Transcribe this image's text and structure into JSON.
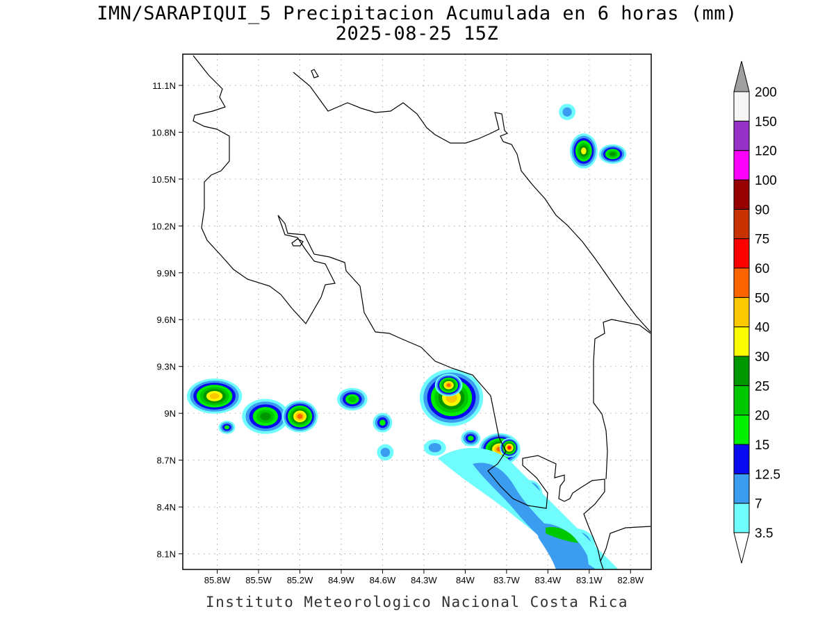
{
  "title": {
    "line1": "IMN/SARAPIQUI_5 Precipitacion Acumulada en 6 horas (mm)",
    "line2": "2025-08-25 15Z"
  },
  "credit": "Instituto Meteorologico Nacional Costa Rica",
  "map": {
    "lon_range": [
      -86.05,
      -82.65
    ],
    "lat_range": [
      8.0,
      11.3
    ],
    "lat_ticks": [
      "11.1N",
      "10.8N",
      "10.5N",
      "10.2N",
      "9.9N",
      "9.6N",
      "9.3N",
      "9N",
      "8.7N",
      "8.4N",
      "8.1N"
    ],
    "lat_values": [
      11.1,
      10.8,
      10.5,
      10.2,
      9.9,
      9.6,
      9.3,
      9.0,
      8.7,
      8.4,
      8.1
    ],
    "lon_ticks": [
      "85.8W",
      "85.5W",
      "85.2W",
      "84.9W",
      "84.6W",
      "84.3W",
      "84W",
      "83.7W",
      "83.4W",
      "83.1W",
      "82.8W"
    ],
    "lon_values": [
      -85.8,
      -85.5,
      -85.2,
      -84.9,
      -84.6,
      -84.3,
      -84.0,
      -83.7,
      -83.4,
      -83.1,
      -82.8
    ],
    "grid": true
  },
  "colorbar": {
    "labels": [
      "3.5",
      "7",
      "12.5",
      "15",
      "20",
      "25",
      "30",
      "40",
      "50",
      "60",
      "75",
      "90",
      "100",
      "120",
      "150",
      "200"
    ],
    "colors": [
      "#6ffcfc",
      "#3c9cf0",
      "#0a0af0",
      "#00f000",
      "#00c800",
      "#009600",
      "#fcfc00",
      "#fcc800",
      "#fc6400",
      "#fc0000",
      "#c83200",
      "#960000",
      "#fc00fc",
      "#9632c8",
      "#f6f6f6",
      "#a0a0a0"
    ],
    "under_color": "#ffffff",
    "over_color": "#a0a0a0"
  },
  "precip_cells": [
    {
      "lon": -85.82,
      "lat": 9.11,
      "rx": 0.17,
      "ry": 0.09,
      "level": 7
    },
    {
      "lon": -85.73,
      "lat": 8.91,
      "rx": 0.03,
      "ry": 0.02,
      "level": 3
    },
    {
      "lon": -85.45,
      "lat": 8.98,
      "rx": 0.14,
      "ry": 0.09,
      "level": 5
    },
    {
      "lon": -85.2,
      "lat": 8.98,
      "rx": 0.1,
      "ry": 0.08,
      "level": 8
    },
    {
      "lon": -84.82,
      "lat": 9.09,
      "rx": 0.08,
      "ry": 0.05,
      "level": 4
    },
    {
      "lon": -84.6,
      "lat": 8.94,
      "rx": 0.04,
      "ry": 0.04,
      "level": 3
    },
    {
      "lon": -84.1,
      "lat": 9.1,
      "rx": 0.2,
      "ry": 0.16,
      "level": 7
    },
    {
      "lon": -84.12,
      "lat": 9.18,
      "rx": 0.07,
      "ry": 0.05,
      "level": 8
    },
    {
      "lon": -83.96,
      "lat": 8.84,
      "rx": 0.04,
      "ry": 0.03,
      "level": 3
    },
    {
      "lon": -83.75,
      "lat": 8.77,
      "rx": 0.12,
      "ry": 0.08,
      "level": 8
    },
    {
      "lon": -83.68,
      "lat": 8.78,
      "rx": 0.04,
      "ry": 0.04,
      "level": 9
    },
    {
      "lon": -83.53,
      "lat": 8.48,
      "rx": 0.06,
      "ry": 0.07,
      "level": 5
    },
    {
      "lon": -83.2,
      "lat": 8.16,
      "rx": 0.11,
      "ry": 0.08,
      "level": 4
    },
    {
      "lon": -83.14,
      "lat": 10.68,
      "rx": 0.07,
      "ry": 0.09,
      "level": 6
    },
    {
      "lon": -82.93,
      "lat": 10.66,
      "rx": 0.07,
      "ry": 0.04,
      "level": 5
    },
    {
      "lon": -83.26,
      "lat": 10.93,
      "rx": 0.03,
      "ry": 0.03,
      "level": 1
    },
    {
      "lon": -84.58,
      "lat": 8.75,
      "rx": 0.03,
      "ry": 0.03,
      "level": 1
    },
    {
      "lon": -84.22,
      "lat": 8.78,
      "rx": 0.05,
      "ry": 0.03,
      "level": 1
    }
  ]
}
